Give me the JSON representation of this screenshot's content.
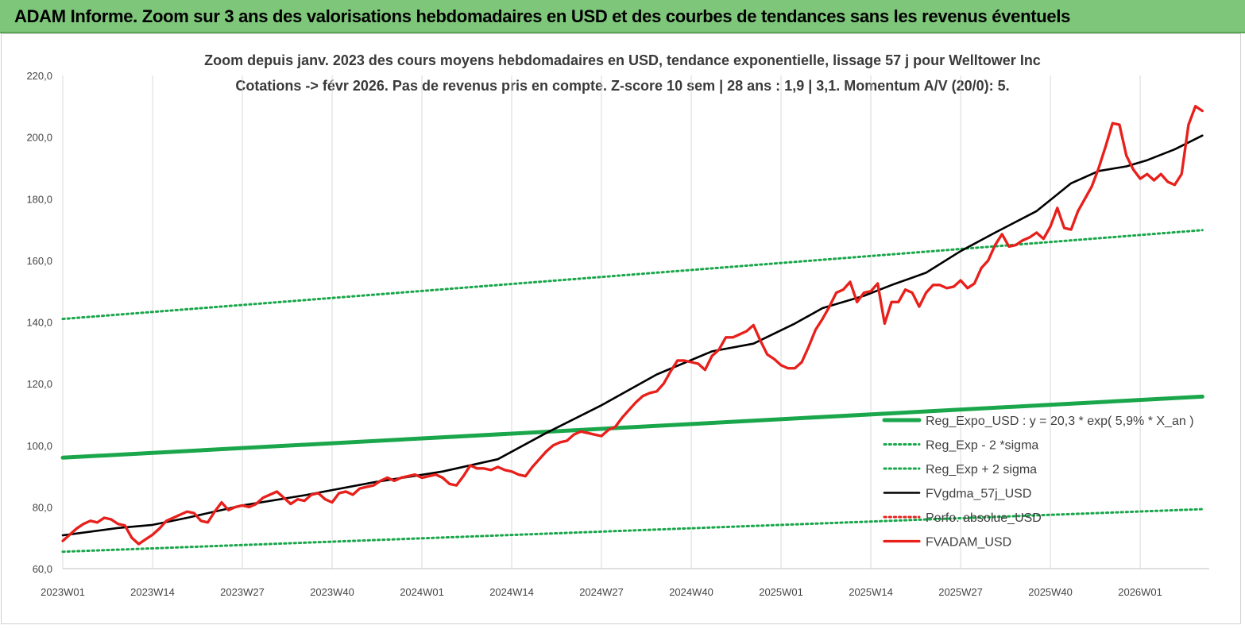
{
  "banner": {
    "title": "ADAM Informe. Zoom sur 3 ans des valorisations hebdomadaires en USD et des courbes de tendances sans les revenus éventuels"
  },
  "chart_data": {
    "type": "line",
    "title": "Zoom depuis janv. 2023 des cours moyens hebdomadaires en USD, tendance exponentielle, lissage 57 j pour Welltower Inc",
    "subtitle": "Cotations -> févr 2026.  Pas de revenus pris en compte. Z-score 10 sem  | 28 ans : 1,9 | 3,1. Momentum A/V (20/0): 5.",
    "xlabel": "",
    "ylabel": "",
    "ylim": [
      60,
      220
    ],
    "yticks": [
      "60,0",
      "80,0",
      "100,0",
      "120,0",
      "140,0",
      "160,0",
      "180,0",
      "200,0",
      "220,0"
    ],
    "xticks": [
      "2023W01",
      "2023W14",
      "2023W27",
      "2023W40",
      "2024W01",
      "2024W14",
      "2024W27",
      "2024W40",
      "2025W01",
      "2025W14",
      "2025W27",
      "2025W40",
      "2026W01"
    ],
    "x_weeks_total": 166,
    "grid": "vertical",
    "legend_position": "right",
    "series": [
      {
        "name": "Reg_Expo_USD : y = 20,3 * exp( 5,9% *  X_an )",
        "color": "#1aa64b",
        "style": "thick",
        "x": [
          0,
          165
        ],
        "values": [
          96.0,
          115.8
        ]
      },
      {
        "name": "Reg_Exp - 2 *sigma",
        "color": "#1aa64b",
        "style": "dotted",
        "x": [
          0,
          165
        ],
        "values": [
          65.5,
          79.3
        ]
      },
      {
        "name": "Reg_Exp + 2 sigma",
        "color": "#1aa64b",
        "style": "dotted",
        "x": [
          0,
          165
        ],
        "values": [
          141.0,
          169.8
        ]
      },
      {
        "name": "FVgdma_57j_USD",
        "color": "#000000",
        "style": "solid",
        "x": [
          0,
          8,
          13,
          18,
          26,
          35,
          45,
          55,
          63,
          70,
          78,
          86,
          94,
          100,
          106,
          110,
          116,
          120,
          125,
          130,
          135,
          141,
          146,
          150,
          154,
          157,
          161,
          165
        ],
        "values": [
          70.8,
          73.2,
          74.2,
          76.5,
          80.5,
          83.8,
          88.0,
          91.5,
          95.5,
          104.0,
          113.0,
          123.0,
          130.5,
          133.0,
          139.5,
          144.5,
          148.5,
          152.0,
          156.0,
          163.0,
          169.0,
          176.0,
          185.0,
          189.0,
          190.5,
          192.5,
          196.0,
          200.5
        ]
      },
      {
        "name": "Perfo. absolue_USD",
        "color": "#e8201c",
        "style": "dotted",
        "x": [],
        "values": []
      },
      {
        "name": "FVADAM_USD",
        "color": "#e8201c",
        "style": "thick",
        "x": [
          0,
          1,
          2,
          3,
          4,
          5,
          6,
          7,
          8,
          9,
          10,
          11,
          12,
          13,
          14,
          15,
          16,
          17,
          18,
          19,
          20,
          21,
          22,
          23,
          24,
          25,
          26,
          27,
          28,
          29,
          30,
          31,
          32,
          33,
          34,
          35,
          36,
          37,
          38,
          39,
          40,
          41,
          42,
          43,
          44,
          45,
          46,
          47,
          48,
          49,
          50,
          51,
          52,
          53,
          54,
          55,
          56,
          57,
          58,
          59,
          60,
          61,
          62,
          63,
          64,
          65,
          66,
          67,
          68,
          69,
          70,
          71,
          72,
          73,
          74,
          75,
          76,
          77,
          78,
          79,
          80,
          81,
          82,
          83,
          84,
          85,
          86,
          87,
          88,
          89,
          90,
          91,
          92,
          93,
          94,
          95,
          96,
          97,
          98,
          99,
          100,
          101,
          102,
          103,
          104,
          105,
          106,
          107,
          108,
          109,
          110,
          111,
          112,
          113,
          114,
          115,
          116,
          117,
          118,
          119,
          120,
          121,
          122,
          123,
          124,
          125,
          126,
          127,
          128,
          129,
          130,
          131,
          132,
          133,
          134,
          135,
          136,
          137,
          138,
          139,
          140,
          141,
          142,
          143,
          144,
          145,
          146,
          147,
          148,
          149,
          150,
          151,
          152,
          153,
          154,
          155,
          156,
          157,
          158,
          159,
          160,
          161,
          162,
          163,
          164,
          165
        ],
        "values": [
          69.0,
          71.0,
          73.0,
          74.5,
          75.5,
          75.0,
          76.5,
          76.0,
          74.5,
          74.0,
          70.0,
          68.0,
          69.5,
          71.0,
          73.0,
          75.5,
          76.5,
          77.5,
          78.5,
          78.0,
          75.5,
          75.0,
          78.5,
          81.5,
          79.0,
          80.0,
          80.5,
          80.0,
          81.0,
          83.0,
          84.0,
          85.0,
          83.0,
          81.0,
          82.5,
          82.0,
          84.0,
          84.5,
          82.5,
          81.5,
          84.5,
          85.0,
          84.0,
          86.0,
          86.5,
          87.0,
          88.5,
          89.5,
          88.5,
          89.5,
          90.0,
          90.5,
          89.5,
          90.0,
          90.5,
          89.5,
          87.5,
          87.0,
          90.0,
          93.5,
          92.5,
          92.5,
          92.0,
          93.0,
          92.0,
          91.5,
          90.5,
          90.0,
          93.0,
          95.5,
          98.0,
          100.0,
          101.0,
          101.5,
          103.5,
          104.5,
          104.0,
          103.5,
          103.0,
          105.0,
          106.0,
          109.0,
          111.5,
          114.0,
          116.0,
          117.0,
          117.5,
          120.0,
          124.0,
          127.5,
          127.5,
          127.0,
          126.5,
          124.5,
          129.0,
          131.0,
          135.0,
          135.0,
          136.0,
          137.0,
          139.0,
          134.0,
          129.5,
          128.0,
          126.0,
          125.0,
          125.0,
          127.0,
          132.0,
          137.5,
          141.0,
          145.0,
          149.5,
          150.5,
          153.0,
          146.5,
          149.5,
          150.0,
          152.5,
          139.5,
          146.5,
          146.5,
          150.5,
          149.5,
          145.0,
          149.5,
          152.0,
          152.0,
          151.0,
          151.5,
          153.5,
          151.0,
          152.5,
          157.5,
          160.0,
          165.0,
          168.5,
          164.5,
          165.0,
          166.5,
          167.5,
          169.0,
          167.0,
          171.0,
          177.0,
          170.5,
          170.0,
          176.0,
          180.0,
          184.0,
          190.0,
          197.0,
          204.5,
          204.0,
          194.0,
          189.5,
          186.5,
          188.0,
          186.0,
          188.0,
          185.5,
          184.5,
          188.0,
          204.0,
          210.0,
          208.5
        ]
      }
    ]
  }
}
